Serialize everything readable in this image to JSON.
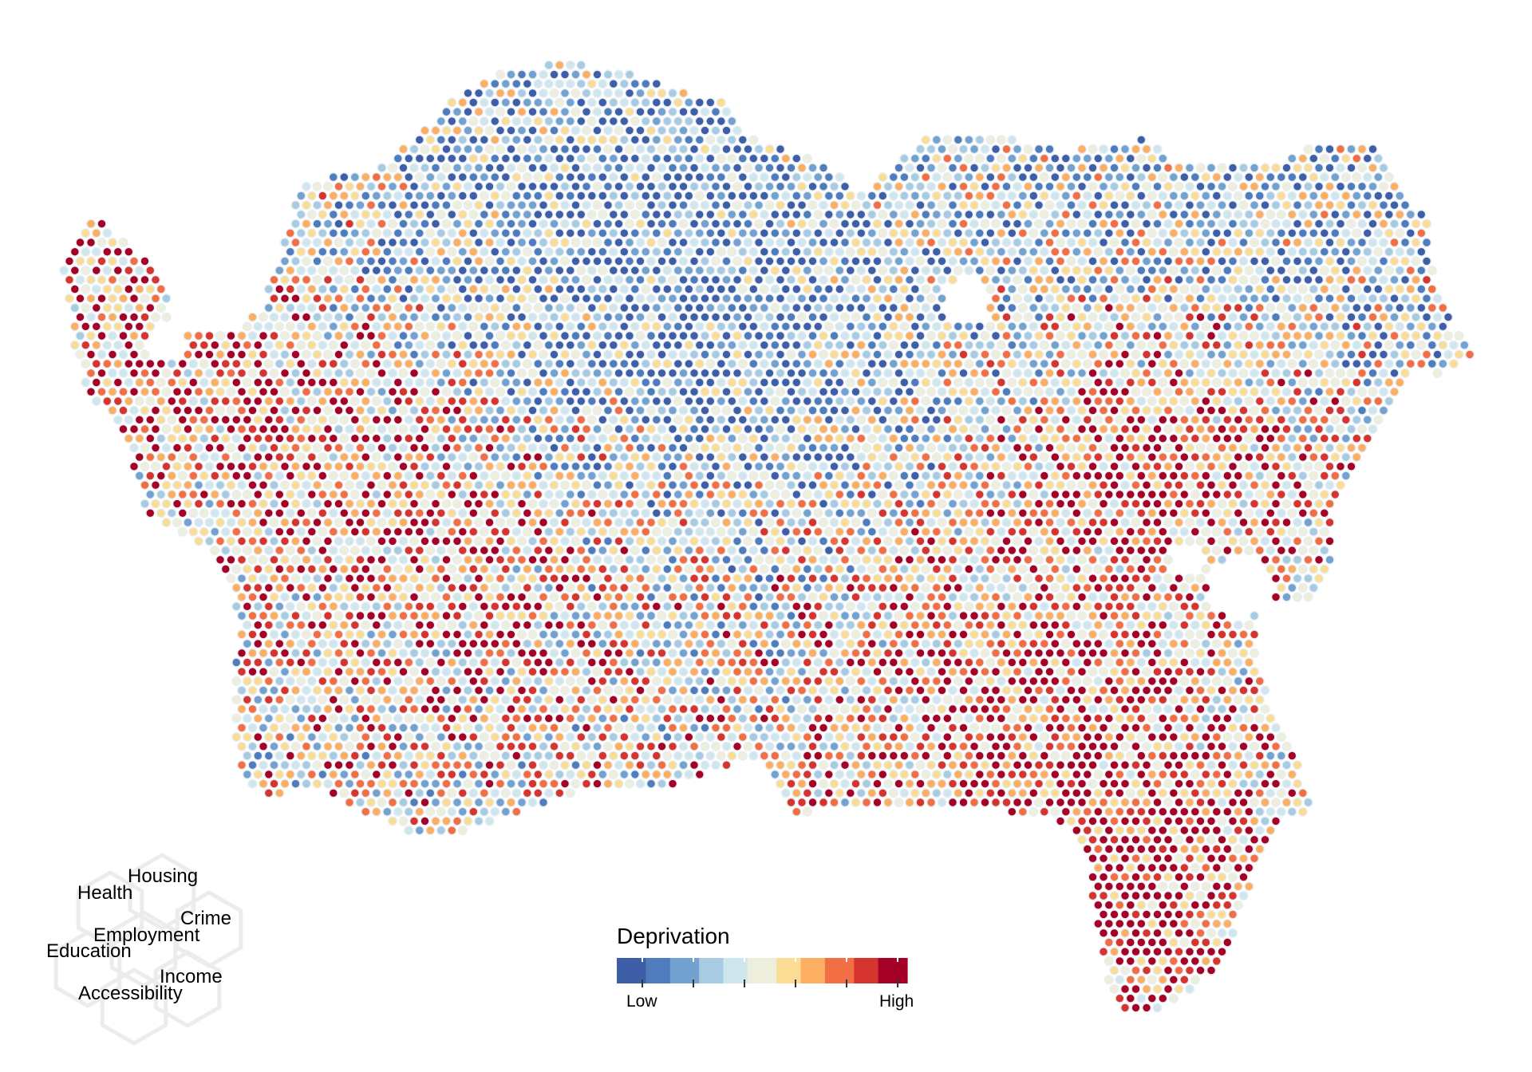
{
  "legend": {
    "title": "Deprivation",
    "low_label": "Low",
    "high_label": "High",
    "palette": [
      "#3f5ea8",
      "#4f7cbd",
      "#74a2d0",
      "#a6cbe2",
      "#cfe6ee",
      "#eeeedd",
      "#fbdc94",
      "#fcae63",
      "#f26f45",
      "#d6342e",
      "#a50026"
    ]
  },
  "key": {
    "labels": [
      "Housing",
      "Health",
      "Crime",
      "Employment",
      "Education",
      "Income",
      "Accessibility"
    ]
  },
  "map": {
    "dot_stroke": "#e8eef2",
    "background": "#ffffff"
  }
}
